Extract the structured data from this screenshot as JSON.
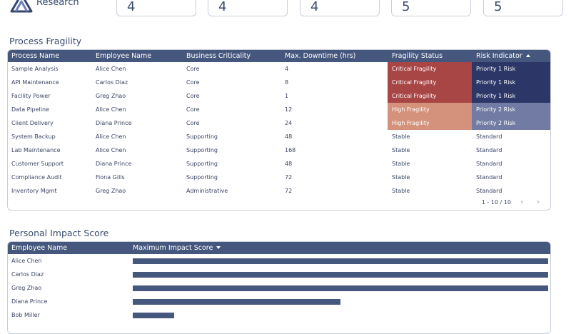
{
  "brand": {
    "name": "Research"
  },
  "kpis": [
    {
      "value": "4"
    },
    {
      "value": "4"
    },
    {
      "value": "4"
    },
    {
      "value": "5"
    },
    {
      "value": "5"
    }
  ],
  "colors": {
    "header": "#46577e",
    "critical_fragility": "#a84545",
    "high_fragility": "#d4927c",
    "priority1": "#2c3768",
    "priority2": "#717ba3"
  },
  "fragility": {
    "title": "Process Fragility",
    "columns": [
      "Process Name",
      "Employee Name",
      "Business Criticality",
      "Max. Downtime (hrs)",
      "Fragility Status",
      "Risk Indicator"
    ],
    "rows": [
      {
        "process": "Sample Analysis",
        "employee": "Alice Chen",
        "criticality": "Core",
        "downtime": "4",
        "status": "Critical Fragility",
        "risk": "Priority 1 Risk"
      },
      {
        "process": "API Maintenance",
        "employee": "Carlos Diaz",
        "criticality": "Core",
        "downtime": "8",
        "status": "Critical Fragility",
        "risk": "Priority 1 Risk"
      },
      {
        "process": "Facility Power",
        "employee": "Greg Zhao",
        "criticality": "Core",
        "downtime": "1",
        "status": "Critical Fragility",
        "risk": "Priority 1 Risk"
      },
      {
        "process": "Data Pipeline",
        "employee": "Alice Chen",
        "criticality": "Core",
        "downtime": "12",
        "status": "High Fragility",
        "risk": "Priority 2 Risk"
      },
      {
        "process": "Client Delivery",
        "employee": "Diana Prince",
        "criticality": "Core",
        "downtime": "24",
        "status": "High Fragility",
        "risk": "Priority 2 Risk"
      },
      {
        "process": "System Backup",
        "employee": "Alice Chen",
        "criticality": "Supporting",
        "downtime": "48",
        "status": "Stable",
        "risk": "Standard"
      },
      {
        "process": "Lab Maintenance",
        "employee": "Alice Chen",
        "criticality": "Supporting",
        "downtime": "168",
        "status": "Stable",
        "risk": "Standard"
      },
      {
        "process": "Customer Support",
        "employee": "Diana Prince",
        "criticality": "Supporting",
        "downtime": "48",
        "status": "Stable",
        "risk": "Standard"
      },
      {
        "process": "Compliance Audit",
        "employee": "Fiona Gills",
        "criticality": "Supporting",
        "downtime": "72",
        "status": "Stable",
        "risk": "Standard"
      },
      {
        "process": "Inventory Mgmt",
        "employee": "Greg Zhao",
        "criticality": "Administrative",
        "downtime": "72",
        "status": "Stable",
        "risk": "Standard"
      }
    ],
    "pagination": "1 - 10 / 10"
  },
  "impact": {
    "title": "Personal Impact Score",
    "columns": [
      "Employee Name",
      "Maximum Impact Score"
    ],
    "rows": [
      {
        "name": "Alice Chen",
        "score_fraction": 1.0
      },
      {
        "name": "Carlos Diaz",
        "score_fraction": 1.0
      },
      {
        "name": "Greg Zhao",
        "score_fraction": 1.0
      },
      {
        "name": "Diana Prince",
        "score_fraction": 0.5
      },
      {
        "name": "Bob Miller",
        "score_fraction": 0.1
      }
    ]
  },
  "icons": [
    "logo-icon",
    "sort-ascending-icon",
    "sort-descending-icon",
    "chevron-left-icon",
    "chevron-right-icon"
  ]
}
